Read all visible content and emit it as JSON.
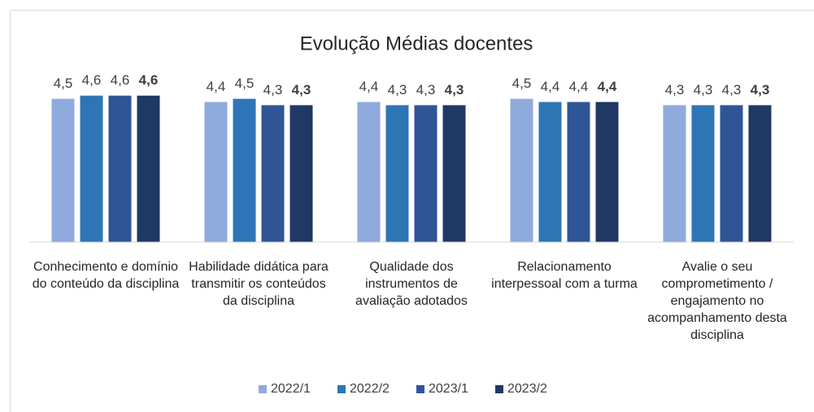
{
  "chart_data": {
    "type": "bar",
    "title": "Evolução Médias docentes",
    "categories": [
      "Conhecimento e domínio do conteúdo da disciplina",
      "Habilidade didática para transmitir os conteúdos da disciplina",
      "Qualidade dos instrumentos de avaliação adotados",
      "Relacionamento interpessoal com a turma",
      "Avalie o seu comprometimento / engajamento no acompanhamento desta disciplina"
    ],
    "series": [
      {
        "name": "2022/1",
        "color": "#8faadc",
        "values": [
          4.5,
          4.4,
          4.4,
          4.5,
          4.3
        ],
        "value_labels": [
          "4,5",
          "4,4",
          "4,4",
          "4,5",
          "4,3"
        ]
      },
      {
        "name": "2022/2",
        "color": "#2e75b6",
        "values": [
          4.6,
          4.5,
          4.3,
          4.4,
          4.3
        ],
        "value_labels": [
          "4,6",
          "4,5",
          "4,3",
          "4,4",
          "4,3"
        ]
      },
      {
        "name": "2023/1",
        "color": "#2f5597",
        "values": [
          4.6,
          4.3,
          4.3,
          4.4,
          4.3
        ],
        "value_labels": [
          "4,6",
          "4,3",
          "4,3",
          "4,4",
          "4,3"
        ]
      },
      {
        "name": "2023/2",
        "color": "#203864",
        "values": [
          4.6,
          4.3,
          4.3,
          4.4,
          4.3
        ],
        "value_labels": [
          "4,6",
          "4,3",
          "4,3",
          "4,4",
          "4,3"
        ],
        "label_weight": "bold"
      }
    ],
    "ylim": [
      0,
      5
    ],
    "legend": "bottom"
  }
}
